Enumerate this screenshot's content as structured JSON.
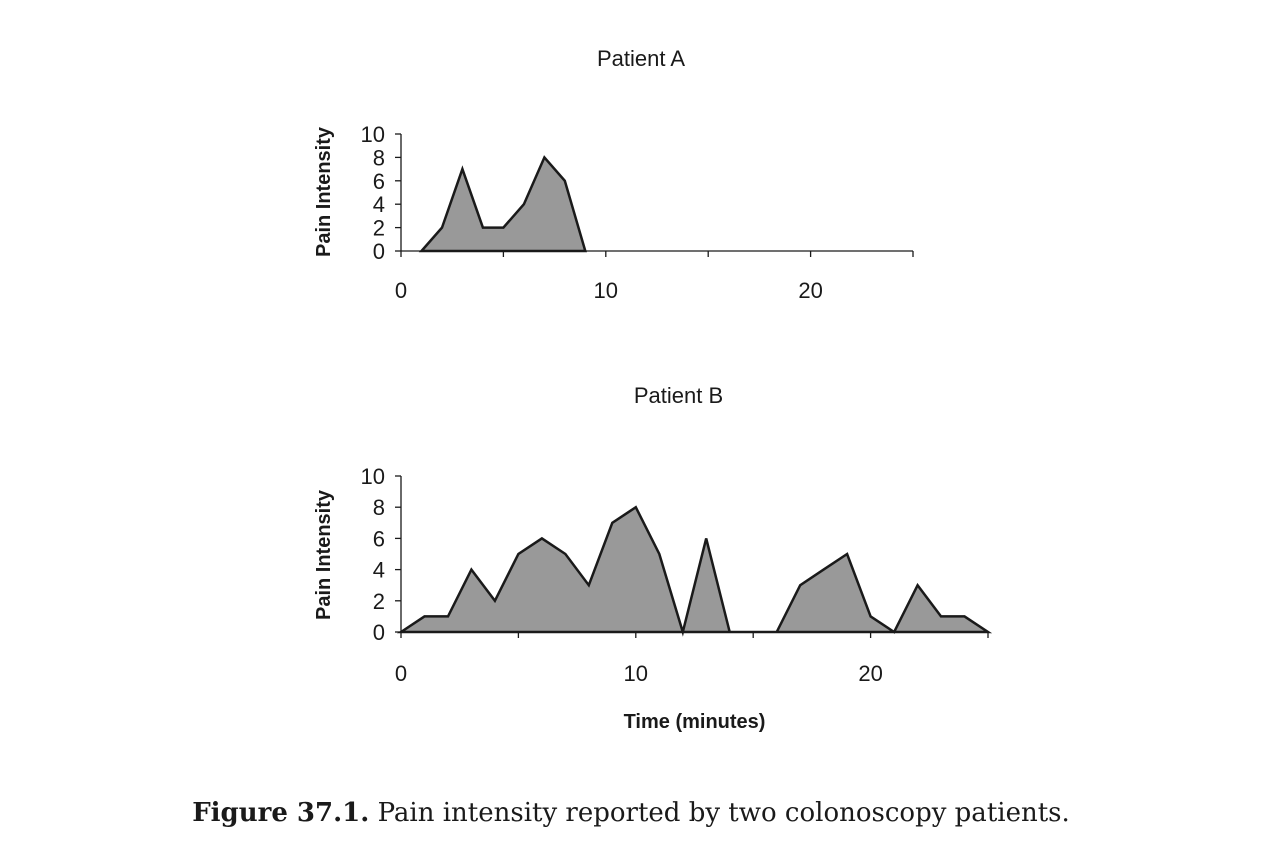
{
  "chart_data": [
    {
      "type": "area",
      "title": "Patient A",
      "xlabel": "",
      "ylabel": "Pain Intensity",
      "xlim": [
        0,
        25
      ],
      "ylim": [
        0,
        10
      ],
      "xticks": [
        0,
        10,
        20
      ],
      "yticks": [
        0,
        2,
        4,
        6,
        8,
        10
      ],
      "grid": false,
      "color": "#999999",
      "series": [
        {
          "x": [
            1,
            2,
            3,
            4,
            5,
            6,
            7,
            8,
            9
          ],
          "values": [
            0,
            2,
            7,
            2,
            2,
            4,
            8,
            6,
            0
          ]
        }
      ]
    },
    {
      "type": "area",
      "title": "Patient B",
      "xlabel": "Time (minutes)",
      "ylabel": "Pain Intensity",
      "xlim": [
        0,
        25
      ],
      "ylim": [
        0,
        10
      ],
      "xticks": [
        0,
        10,
        20
      ],
      "yticks": [
        0,
        2,
        4,
        6,
        8,
        10
      ],
      "grid": false,
      "color": "#999999",
      "series": [
        {
          "x": [
            0,
            1,
            2,
            3,
            4,
            5,
            6,
            7,
            8,
            9,
            10,
            11,
            12,
            13,
            14,
            15,
            16,
            17,
            18,
            19,
            20,
            21,
            22,
            23,
            24,
            25
          ],
          "values": [
            0,
            1,
            1,
            4,
            2,
            5,
            6,
            5,
            3,
            7,
            8,
            5,
            0,
            6,
            0,
            0,
            0,
            3,
            4,
            5,
            1,
            0,
            3,
            1,
            1,
            0
          ]
        }
      ]
    }
  ],
  "caption": {
    "label": "Figure 37.1.",
    "text": " Pain intensity reported by two colonoscopy patients."
  }
}
